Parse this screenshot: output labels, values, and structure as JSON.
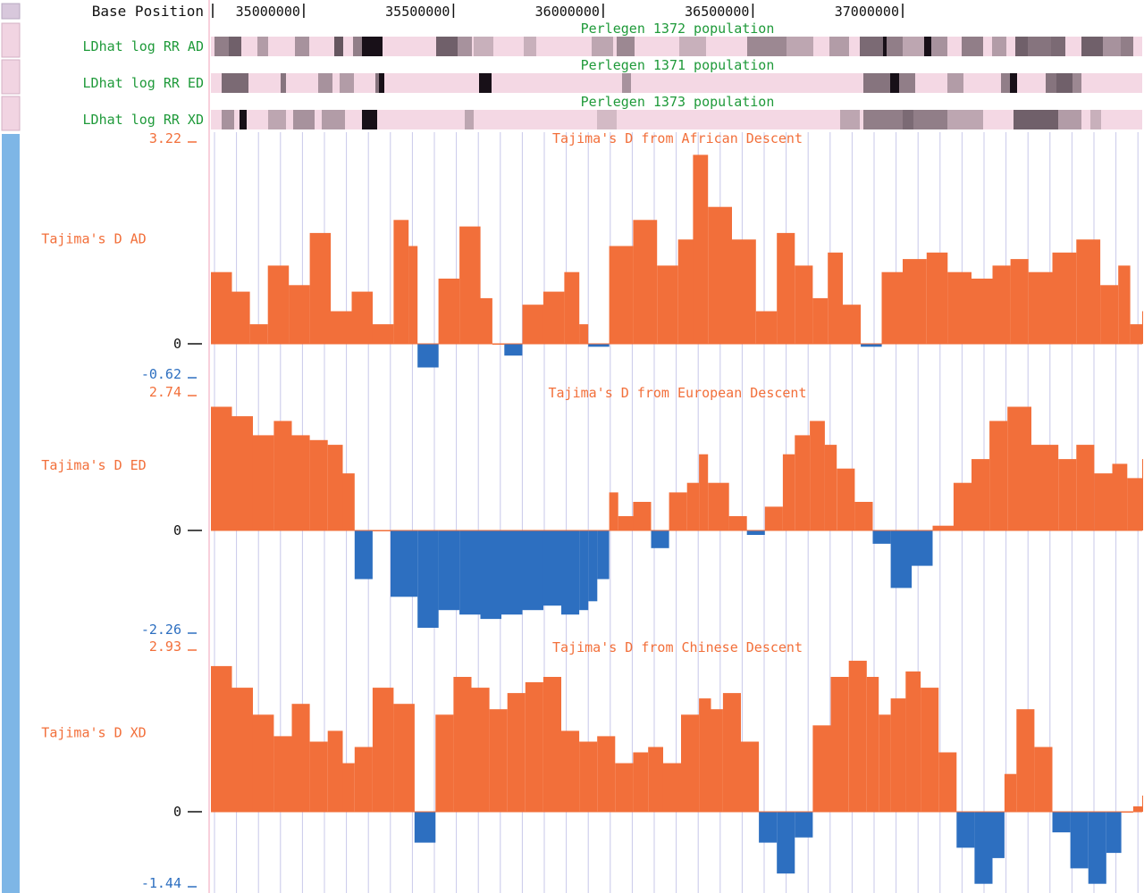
{
  "colors": {
    "positive": "#f26f3a",
    "negative": "#2d6fc0",
    "ld_label": "#1f9a3a",
    "plot_label": "#f26f3a",
    "tick_label": "#111111",
    "ld_bg": "#f4d8e4",
    "ld_dark": "#181018",
    "sidebar_blue": "#7eb6e6",
    "sidebar_pink": "#f1d4e2",
    "grid": "#c8c8ea",
    "divider": "#f0a0b8"
  },
  "ruler": {
    "label": "Base Position",
    "ticks": [
      "35000000",
      "35500000",
      "36000000",
      "36500000",
      "37000000"
    ]
  },
  "ld_tracks": [
    {
      "label": "LDhat log RR AD",
      "title": "Perlegen 1372 population",
      "blocks": [
        [
          240,
          256,
          0.45
        ],
        [
          256,
          270,
          0.6
        ],
        [
          288,
          300,
          0.3
        ],
        [
          330,
          346,
          0.35
        ],
        [
          374,
          384,
          0.65
        ],
        [
          395,
          405,
          0.45
        ],
        [
          405,
          428,
          1.0
        ],
        [
          488,
          512,
          0.6
        ],
        [
          512,
          528,
          0.35
        ],
        [
          530,
          552,
          0.2
        ],
        [
          586,
          600,
          0.2
        ],
        [
          662,
          686,
          0.25
        ],
        [
          690,
          710,
          0.4
        ],
        [
          760,
          790,
          0.2
        ],
        [
          836,
          880,
          0.4
        ],
        [
          880,
          910,
          0.25
        ],
        [
          928,
          950,
          0.3
        ],
        [
          962,
          988,
          0.55
        ],
        [
          988,
          992,
          1.0
        ],
        [
          992,
          1010,
          0.45
        ],
        [
          1010,
          1034,
          0.25
        ],
        [
          1034,
          1042,
          1.0
        ],
        [
          1042,
          1060,
          0.35
        ],
        [
          1076,
          1100,
          0.45
        ],
        [
          1110,
          1126,
          0.3
        ],
        [
          1136,
          1150,
          0.6
        ],
        [
          1150,
          1176,
          0.5
        ],
        [
          1176,
          1192,
          0.55
        ],
        [
          1210,
          1234,
          0.6
        ],
        [
          1234,
          1254,
          0.35
        ],
        [
          1254,
          1268,
          0.45
        ]
      ]
    },
    {
      "label": "LDhat log RR ED",
      "title": "Perlegen 1371 population",
      "blocks": [
        [
          248,
          278,
          0.55
        ],
        [
          314,
          320,
          0.5
        ],
        [
          356,
          372,
          0.35
        ],
        [
          380,
          396,
          0.3
        ],
        [
          420,
          424,
          0.5
        ],
        [
          424,
          430,
          1.0
        ],
        [
          536,
          550,
          1.0
        ],
        [
          696,
          706,
          0.35
        ],
        [
          966,
          996,
          0.5
        ],
        [
          996,
          1006,
          1.0
        ],
        [
          1006,
          1024,
          0.45
        ],
        [
          1060,
          1078,
          0.3
        ],
        [
          1120,
          1130,
          0.45
        ],
        [
          1130,
          1138,
          1.0
        ],
        [
          1170,
          1182,
          0.5
        ],
        [
          1182,
          1200,
          0.6
        ],
        [
          1200,
          1210,
          0.4
        ]
      ]
    },
    {
      "label": "LDhat log RR XD",
      "title": "Perlegen 1373 population",
      "blocks": [
        [
          248,
          262,
          0.35
        ],
        [
          268,
          276,
          1.0
        ],
        [
          300,
          320,
          0.25
        ],
        [
          328,
          352,
          0.35
        ],
        [
          360,
          386,
          0.3
        ],
        [
          405,
          422,
          1.0
        ],
        [
          520,
          530,
          0.25
        ],
        [
          668,
          690,
          0.15
        ],
        [
          940,
          962,
          0.25
        ],
        [
          966,
          1010,
          0.45
        ],
        [
          1010,
          1022,
          0.55
        ],
        [
          1022,
          1060,
          0.45
        ],
        [
          1060,
          1100,
          0.25
        ],
        [
          1134,
          1184,
          0.6
        ],
        [
          1184,
          1210,
          0.3
        ],
        [
          1220,
          1232,
          0.2
        ]
      ]
    }
  ],
  "chart_data": [
    {
      "type": "area",
      "title": "Tajima's D from African Descent",
      "track_label": "Tajima's D AD",
      "y_max_label": "3.22",
      "y_min_label": "-0.62",
      "zero_label": "0",
      "ylim": [
        -0.62,
        3.22
      ],
      "xlabel": "Base Position",
      "x_ticks": [
        35000000,
        35500000,
        36000000,
        36500000,
        37000000
      ],
      "x": [
        34690000,
        34760000,
        34820000,
        34880000,
        34950000,
        35020000,
        35090000,
        35160000,
        35230000,
        35300000,
        35350000,
        35380000,
        35450000,
        35520000,
        35590000,
        35630000,
        35670000,
        35730000,
        35800000,
        35870000,
        35920000,
        35950000,
        36020000,
        36100000,
        36180000,
        36250000,
        36300000,
        36350000,
        36430000,
        36510000,
        36580000,
        36640000,
        36700000,
        36750000,
        36800000,
        36860000,
        36930000,
        37000000,
        37080000,
        37150000,
        37230000,
        37300000,
        37360000,
        37420000,
        37500000,
        37580000,
        37660000,
        37720000,
        37760000,
        37800000
      ],
      "y": [
        1.1,
        0.8,
        0.3,
        1.2,
        0.9,
        1.7,
        0.5,
        0.8,
        0.3,
        1.9,
        1.5,
        -0.4,
        1.0,
        1.8,
        0.7,
        0.0,
        -0.2,
        0.6,
        0.8,
        1.1,
        0.3,
        -0.05,
        1.5,
        1.9,
        1.2,
        1.6,
        2.9,
        2.1,
        1.6,
        0.5,
        1.7,
        1.2,
        0.7,
        1.4,
        0.6,
        -0.05,
        1.1,
        1.3,
        1.4,
        1.1,
        1.0,
        1.2,
        1.3,
        1.1,
        1.4,
        1.6,
        0.9,
        1.2,
        0.3,
        0.5
      ]
    },
    {
      "type": "area",
      "title": "Tajima's D from European Descent",
      "track_label": "Tajima's D ED",
      "y_max_label": "2.74",
      "y_min_label": "-2.26",
      "zero_label": "0",
      "ylim": [
        -2.26,
        2.74
      ],
      "xlabel": "Base Position",
      "x_ticks": [
        35000000,
        35500000,
        36000000,
        36500000,
        37000000
      ],
      "x": [
        34690000,
        34760000,
        34830000,
        34900000,
        34960000,
        35020000,
        35080000,
        35130000,
        35170000,
        35230000,
        35290000,
        35380000,
        35450000,
        35520000,
        35590000,
        35660000,
        35730000,
        35800000,
        35860000,
        35920000,
        35950000,
        35980000,
        36020000,
        36050000,
        36100000,
        36160000,
        36220000,
        36280000,
        36320000,
        36350000,
        36420000,
        36480000,
        36540000,
        36600000,
        36640000,
        36690000,
        36740000,
        36780000,
        36840000,
        36900000,
        36960000,
        37030000,
        37100000,
        37170000,
        37230000,
        37290000,
        37350000,
        37430000,
        37520000,
        37580000,
        37640000,
        37700000,
        37750000,
        37800000
      ],
      "y": [
        2.6,
        2.4,
        2.0,
        2.3,
        2.0,
        1.9,
        1.8,
        1.2,
        -1.1,
        0.0,
        -1.5,
        -2.2,
        -1.8,
        -1.9,
        -2.0,
        -1.9,
        -1.8,
        -1.7,
        -1.9,
        -1.8,
        -1.6,
        -1.1,
        0.8,
        0.3,
        0.6,
        -0.4,
        0.8,
        1.0,
        1.6,
        1.0,
        0.3,
        -0.1,
        0.5,
        1.6,
        2.0,
        2.3,
        1.8,
        1.3,
        0.6,
        -0.3,
        -1.3,
        -0.8,
        0.1,
        1.0,
        1.5,
        2.3,
        2.6,
        1.8,
        1.5,
        1.8,
        1.2,
        1.4,
        1.1,
        1.5
      ]
    },
    {
      "type": "area",
      "title": "Tajima's D from Chinese Descent",
      "track_label": "Tajima's D XD",
      "y_max_label": "2.93",
      "y_min_label": "-1.44",
      "zero_label": "0",
      "ylim": [
        -1.44,
        2.93
      ],
      "xlabel": "Base Position",
      "x_ticks": [
        35000000,
        35500000,
        36000000,
        36500000,
        37000000
      ],
      "x": [
        34690000,
        34760000,
        34830000,
        34900000,
        34960000,
        35020000,
        35080000,
        35130000,
        35170000,
        35230000,
        35300000,
        35370000,
        35440000,
        35500000,
        35560000,
        35620000,
        35680000,
        35740000,
        35800000,
        35860000,
        35920000,
        35980000,
        36040000,
        36100000,
        36150000,
        36200000,
        36260000,
        36320000,
        36360000,
        36400000,
        36460000,
        36520000,
        36580000,
        36640000,
        36700000,
        36760000,
        36820000,
        36880000,
        36920000,
        36960000,
        37010000,
        37060000,
        37120000,
        37180000,
        37240000,
        37300000,
        37340000,
        37380000,
        37440000,
        37500000,
        37560000,
        37620000,
        37680000,
        37730000,
        37770000,
        37800000
      ],
      "y": [
        2.7,
        2.3,
        1.8,
        1.4,
        2.0,
        1.3,
        1.5,
        0.9,
        1.2,
        2.3,
        2.0,
        -0.6,
        1.8,
        2.5,
        2.3,
        1.9,
        2.2,
        2.4,
        2.5,
        1.5,
        1.3,
        1.4,
        0.9,
        1.1,
        1.2,
        0.9,
        1.8,
        2.1,
        1.9,
        2.2,
        1.3,
        -0.6,
        -1.2,
        -0.5,
        1.6,
        2.5,
        2.8,
        2.5,
        1.8,
        2.1,
        2.6,
        2.3,
        1.1,
        -0.7,
        -1.4,
        -0.9,
        0.7,
        1.9,
        1.2,
        -0.4,
        -1.1,
        -1.4,
        -0.8,
        0.0,
        0.1,
        0.3
      ]
    }
  ]
}
